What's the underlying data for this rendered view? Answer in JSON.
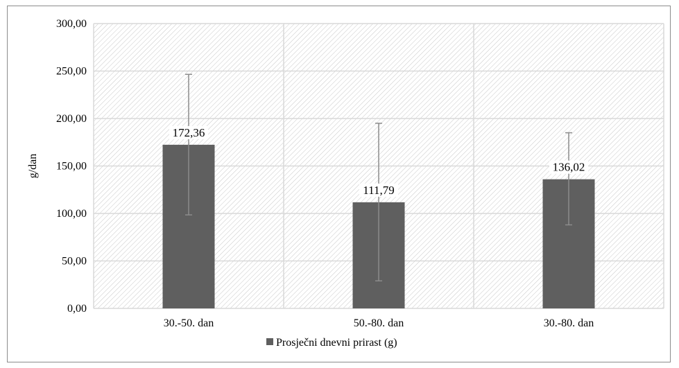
{
  "chart_data": {
    "type": "bar",
    "categories": [
      "30.-50. dan",
      "50.-80. dan",
      "30.-80. dan"
    ],
    "series": [
      {
        "name": "Prosječni dnevni prirast (g)",
        "values": [
          172.36,
          111.79,
          136.02
        ],
        "error_upper": [
          246.5,
          195.0,
          185.0
        ],
        "error_lower": [
          98.5,
          29.0,
          88.0
        ],
        "value_labels": [
          "172,36",
          "111,79",
          "136,02"
        ]
      }
    ],
    "title": "",
    "xlabel": "",
    "ylabel": "g/dan",
    "ylim": [
      0,
      300
    ],
    "yticks": [
      0,
      50,
      100,
      150,
      200,
      250,
      300
    ],
    "ytick_labels": [
      "0,00",
      "50,00",
      "100,00",
      "150,00",
      "200,00",
      "250,00",
      "300,00"
    ],
    "grid": true,
    "plot_background": "hatched",
    "legend_position": "bottom",
    "colors": {
      "bar": "#5f5f5f",
      "error_bar": "#8c8c8c",
      "grid": "#d9d9d9",
      "hatch": "#c8c8c8"
    }
  }
}
